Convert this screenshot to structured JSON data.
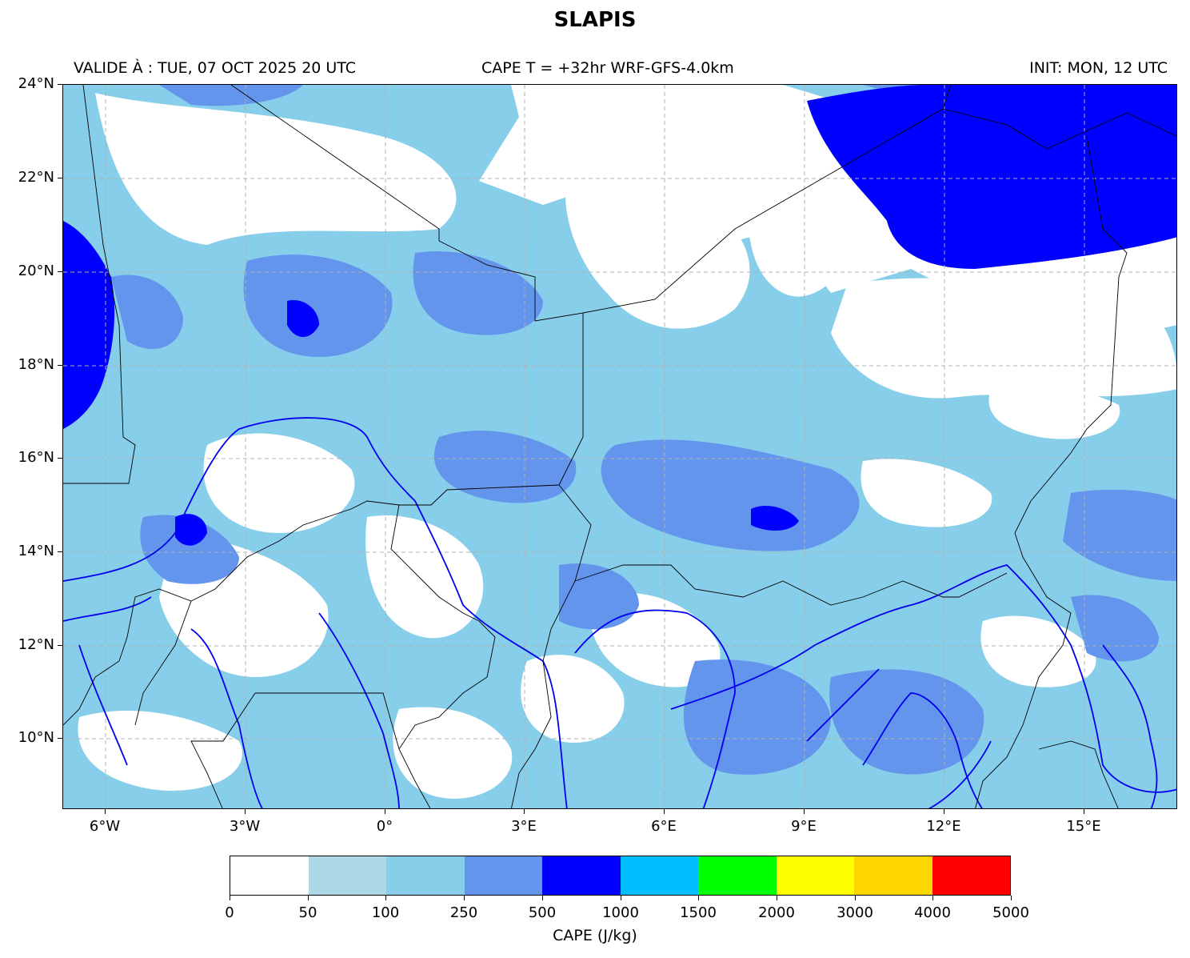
{
  "title": "SLAPIS",
  "subtitle_left": "VALIDE À : TUE, 07 OCT 2025 20 UTC",
  "subtitle_center": "CAPE T = +32hr WRF-GFS-4.0km",
  "subtitle_right": "INIT: MON, 12 UTC",
  "map": {
    "lon_range": [
      -7.0,
      17.0
    ],
    "lat_range": [
      8.5,
      24.0
    ],
    "lat_ticks": [
      "24°N",
      "22°N",
      "20°N",
      "18°N",
      "16°N",
      "14°N",
      "12°N",
      "10°N"
    ],
    "lon_ticks": [
      "6°W",
      "3°W",
      "0°",
      "3°E",
      "6°E",
      "9°E",
      "12°E",
      "15°E"
    ],
    "gridlines": true
  },
  "colorbar": {
    "title": "CAPE (J/kg)",
    "boundaries": [
      "0",
      "50",
      "100",
      "250",
      "500",
      "1000",
      "1500",
      "2000",
      "3000",
      "4000",
      "5000"
    ],
    "colors": [
      "#ffffff",
      "#add8e6",
      "#87ceeb",
      "#6495ed",
      "#0000ff",
      "#00bfff",
      "#00ff00",
      "#ffff00",
      "#ffd700",
      "#ff0000"
    ]
  }
}
